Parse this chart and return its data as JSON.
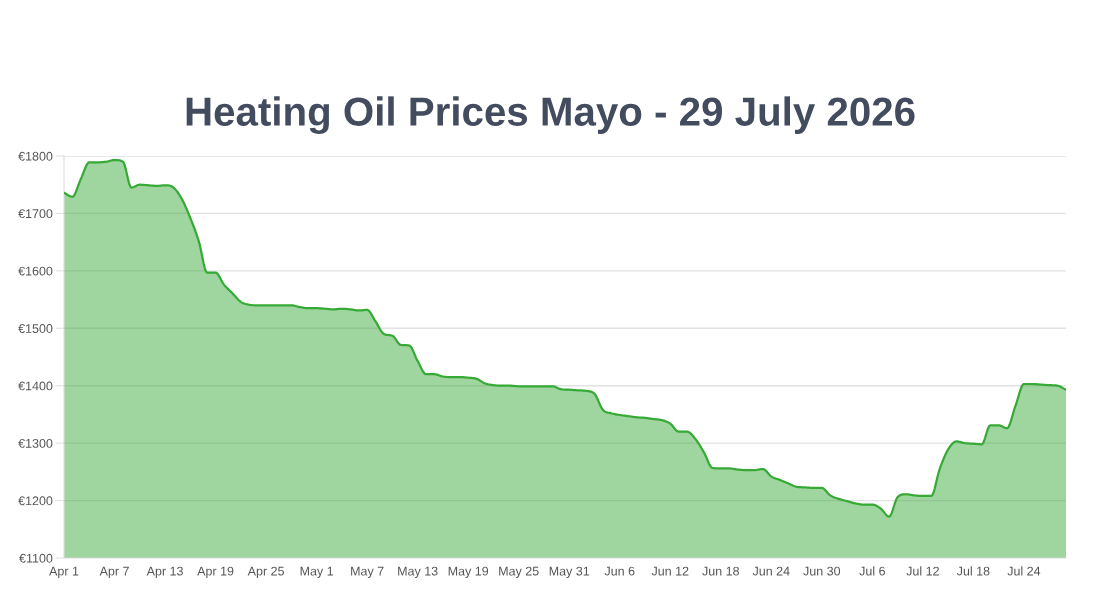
{
  "chart_data": {
    "type": "area",
    "title": "Heating Oil Prices Mayo - 29 July 2026",
    "x": [
      "2026-04-01",
      "2026-04-02",
      "2026-04-03",
      "2026-04-04",
      "2026-04-05",
      "2026-04-06",
      "2026-04-07",
      "2026-04-08",
      "2026-04-09",
      "2026-04-10",
      "2026-04-11",
      "2026-04-12",
      "2026-04-13",
      "2026-04-14",
      "2026-04-15",
      "2026-04-16",
      "2026-04-17",
      "2026-04-18",
      "2026-04-19",
      "2026-04-20",
      "2026-04-21",
      "2026-04-22",
      "2026-04-23",
      "2026-04-24",
      "2026-04-25",
      "2026-04-26",
      "2026-04-27",
      "2026-04-28",
      "2026-04-29",
      "2026-04-30",
      "2026-05-01",
      "2026-05-02",
      "2026-05-03",
      "2026-05-04",
      "2026-05-05",
      "2026-05-06",
      "2026-05-07",
      "2026-05-08",
      "2026-05-09",
      "2026-05-10",
      "2026-05-11",
      "2026-05-12",
      "2026-05-13",
      "2026-05-14",
      "2026-05-15",
      "2026-05-16",
      "2026-05-17",
      "2026-05-18",
      "2026-05-19",
      "2026-05-20",
      "2026-05-21",
      "2026-05-22",
      "2026-05-23",
      "2026-05-24",
      "2026-05-25",
      "2026-05-26",
      "2026-05-27",
      "2026-05-28",
      "2026-05-29",
      "2026-05-30",
      "2026-05-31",
      "2026-06-01",
      "2026-06-02",
      "2026-06-03",
      "2026-06-04",
      "2026-06-05",
      "2026-06-06",
      "2026-06-07",
      "2026-06-08",
      "2026-06-09",
      "2026-06-10",
      "2026-06-11",
      "2026-06-12",
      "2026-06-13",
      "2026-06-14",
      "2026-06-15",
      "2026-06-16",
      "2026-06-17",
      "2026-06-18",
      "2026-06-19",
      "2026-06-20",
      "2026-06-21",
      "2026-06-22",
      "2026-06-23",
      "2026-06-24",
      "2026-06-25",
      "2026-06-26",
      "2026-06-27",
      "2026-06-28",
      "2026-06-29",
      "2026-06-30",
      "2026-07-01",
      "2026-07-02",
      "2026-07-03",
      "2026-07-04",
      "2026-07-05",
      "2026-07-06",
      "2026-07-07",
      "2026-07-08",
      "2026-07-09",
      "2026-07-10",
      "2026-07-11",
      "2026-07-12",
      "2026-07-13",
      "2026-07-14",
      "2026-07-15",
      "2026-07-16",
      "2026-07-17",
      "2026-07-18",
      "2026-07-19",
      "2026-07-20",
      "2026-07-21",
      "2026-07-22",
      "2026-07-23",
      "2026-07-24",
      "2026-07-25",
      "2026-07-26",
      "2026-07-27",
      "2026-07-28",
      "2026-07-29"
    ],
    "series": [
      {
        "color": "#36a936",
        "values": [
          1736,
          1729,
          1760,
          1789,
          1789,
          1790,
          1793,
          1790,
          1745,
          1750,
          1749,
          1748,
          1749,
          1745,
          1725,
          1692,
          1652,
          1597,
          1597,
          1576,
          1561,
          1546,
          1541,
          1540,
          1540,
          1540,
          1540,
          1540,
          1537,
          1535,
          1535,
          1534,
          1533,
          1534,
          1533,
          1531,
          1532,
          1512,
          1490,
          1487,
          1471,
          1470,
          1443,
          1420,
          1420,
          1416,
          1415,
          1415,
          1414,
          1412,
          1404,
          1401,
          1400,
          1400,
          1399,
          1399,
          1399,
          1399,
          1399,
          1394,
          1393,
          1392,
          1391,
          1386,
          1358,
          1352,
          1349,
          1347,
          1345,
          1344,
          1342,
          1340,
          1334,
          1320,
          1320,
          1307,
          1284,
          1257,
          1256,
          1256,
          1254,
          1253,
          1253,
          1255,
          1242,
          1236,
          1230,
          1224,
          1223,
          1222,
          1222,
          1209,
          1203,
          1199,
          1195,
          1193,
          1193,
          1186,
          1172,
          1206,
          1211,
          1209,
          1208,
          1208,
          1255,
          1289,
          1303,
          1300,
          1299,
          1298,
          1331,
          1331,
          1326,
          1365,
          1403,
          1403,
          1402,
          1401,
          1400,
          1393
        ]
      }
    ],
    "xlim": [
      "2026-04-01",
      "2026-07-29"
    ],
    "xticks": [
      {
        "value": "2026-04-01",
        "label": "Apr 1"
      },
      {
        "value": "2026-04-07",
        "label": "Apr 7"
      },
      {
        "value": "2026-04-13",
        "label": "Apr 13"
      },
      {
        "value": "2026-04-19",
        "label": "Apr 19"
      },
      {
        "value": "2026-04-25",
        "label": "Apr 25"
      },
      {
        "value": "2026-05-01",
        "label": "May 1"
      },
      {
        "value": "2026-05-07",
        "label": "May 7"
      },
      {
        "value": "2026-05-13",
        "label": "May 13"
      },
      {
        "value": "2026-05-19",
        "label": "May 19"
      },
      {
        "value": "2026-05-25",
        "label": "May 25"
      },
      {
        "value": "2026-05-31",
        "label": "May 31"
      },
      {
        "value": "2026-06-06",
        "label": "Jun 6"
      },
      {
        "value": "2026-06-12",
        "label": "Jun 12"
      },
      {
        "value": "2026-06-18",
        "label": "Jun 18"
      },
      {
        "value": "2026-06-24",
        "label": "Jun 24"
      },
      {
        "value": "2026-06-30",
        "label": "Jun 30"
      },
      {
        "value": "2026-07-06",
        "label": "Jul 6"
      },
      {
        "value": "2026-07-12",
        "label": "Jul 12"
      },
      {
        "value": "2026-07-18",
        "label": "Jul 18"
      },
      {
        "value": "2026-07-24",
        "label": "Jul 24"
      }
    ],
    "ylim": [
      1100,
      1800
    ],
    "yticks": [
      {
        "value": 1100,
        "label": "€1100"
      },
      {
        "value": 1200,
        "label": "€1200"
      },
      {
        "value": 1300,
        "label": "€1300"
      },
      {
        "value": 1400,
        "label": "€1400"
      },
      {
        "value": 1500,
        "label": "€1500"
      },
      {
        "value": 1600,
        "label": "€1600"
      },
      {
        "value": 1700,
        "label": "€1700"
      },
      {
        "value": 1800,
        "label": "€1800"
      }
    ],
    "grid": "y"
  }
}
